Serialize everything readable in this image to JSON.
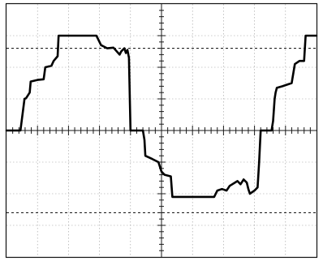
{
  "chart_data": {
    "type": "line",
    "title": "",
    "xlabel": "",
    "ylabel": "",
    "xlim": [
      -5,
      5
    ],
    "ylim": [
      -4,
      4
    ],
    "grid": true,
    "grid_divisions": {
      "x": 10,
      "y": 8
    },
    "minor_ticks_per_division": 5,
    "reference_levels": [
      2.6,
      -2.6
    ],
    "series": [
      {
        "x": [
          -5.0,
          -4.55,
          -4.42,
          -4.37,
          -4.25,
          -4.22,
          -4.0,
          -3.8,
          -3.75,
          -3.55,
          -3.48,
          -3.35,
          -3.32,
          -2.1,
          -1.95,
          -1.75,
          -1.55,
          -1.35,
          -1.3,
          -1.2,
          -1.15,
          -1.1,
          -1.05,
          -1.0,
          -0.6,
          -0.55,
          -0.52,
          -0.3,
          -0.1,
          -0.05,
          0.0,
          0.1,
          0.3,
          0.35,
          1.7,
          1.8,
          1.95,
          2.1,
          2.2,
          2.45,
          2.55,
          2.65,
          2.75,
          2.8,
          2.85,
          3.0,
          3.1,
          3.15,
          3.2,
          3.45,
          3.55,
          3.6,
          3.65,
          3.68,
          3.72,
          3.9,
          4.2,
          4.3,
          4.45,
          4.6,
          4.65,
          5.0
        ],
        "y": [
          0.0,
          0.0,
          1.0,
          1.02,
          1.2,
          1.55,
          1.6,
          1.62,
          2.0,
          2.05,
          2.2,
          2.35,
          3.0,
          3.0,
          2.7,
          2.6,
          2.62,
          2.4,
          2.5,
          2.6,
          2.45,
          2.55,
          2.3,
          0.0,
          0.0,
          -0.3,
          -0.8,
          -0.9,
          -1.0,
          -1.15,
          -1.3,
          -1.4,
          -1.45,
          -2.1,
          -2.1,
          -1.9,
          -1.85,
          -1.9,
          -1.75,
          -1.6,
          -1.7,
          -1.55,
          -1.65,
          -1.85,
          -2.0,
          -1.9,
          -1.8,
          -1.0,
          0.0,
          0.0,
          0.0,
          0.3,
          1.0,
          1.2,
          1.35,
          1.4,
          1.5,
          2.1,
          2.2,
          2.2,
          3.0,
          3.0
        ]
      }
    ]
  }
}
